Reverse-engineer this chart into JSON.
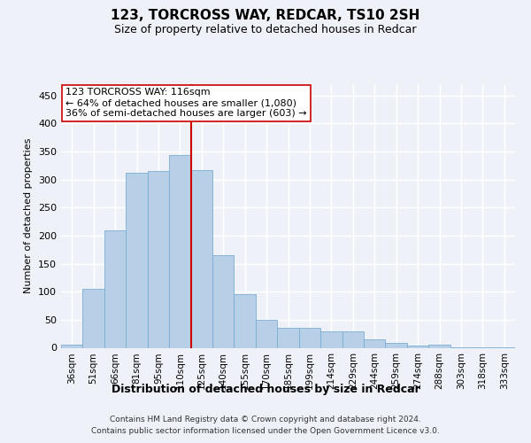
{
  "title1": "123, TORCROSS WAY, REDCAR, TS10 2SH",
  "title2": "Size of property relative to detached houses in Redcar",
  "xlabel": "Distribution of detached houses by size in Redcar",
  "ylabel": "Number of detached properties",
  "categories": [
    "36sqm",
    "51sqm",
    "66sqm",
    "81sqm",
    "95sqm",
    "110sqm",
    "125sqm",
    "140sqm",
    "155sqm",
    "170sqm",
    "185sqm",
    "199sqm",
    "214sqm",
    "229sqm",
    "244sqm",
    "259sqm",
    "274sqm",
    "288sqm",
    "303sqm",
    "318sqm",
    "333sqm"
  ],
  "values": [
    6,
    105,
    210,
    312,
    315,
    343,
    316,
    165,
    96,
    50,
    35,
    35,
    29,
    29,
    15,
    8,
    4,
    5,
    1,
    1,
    1
  ],
  "bar_color": "#b8cfe8",
  "bar_edge_color": "#7aadd4",
  "vline_color": "#cc0000",
  "annotation_line1": "123 TORCROSS WAY: 116sqm",
  "annotation_line2": "← 64% of detached houses are smaller (1,080)",
  "annotation_line3": "36% of semi-detached houses are larger (603) →",
  "annotation_box_color": "white",
  "annotation_box_edge_color": "#cc0000",
  "footer1": "Contains HM Land Registry data © Crown copyright and database right 2024.",
  "footer2": "Contains public sector information licensed under the Open Government Licence v3.0.",
  "ylim": [
    0,
    470
  ],
  "yticks": [
    0,
    50,
    100,
    150,
    200,
    250,
    300,
    350,
    400,
    450
  ],
  "bg_color": "#eef2f8",
  "plot_bg_color": "#eef2f8",
  "grid_color": "white",
  "title1_fontsize": 11,
  "title2_fontsize": 9,
  "ylabel_fontsize": 8,
  "xlabel_fontsize": 9,
  "tick_fontsize": 7.5,
  "ytick_fontsize": 8,
  "footer_fontsize": 6.5,
  "ann_fontsize": 8
}
